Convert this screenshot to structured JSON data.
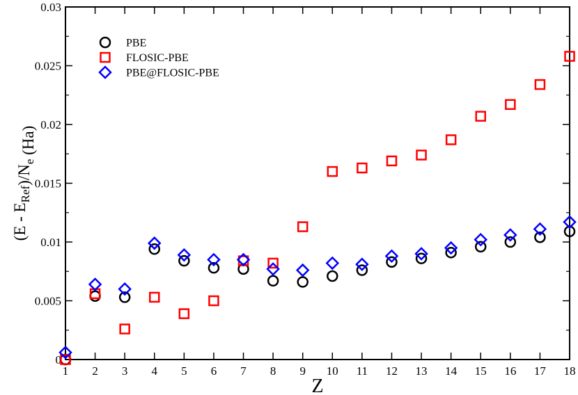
{
  "chart_data": {
    "type": "scatter",
    "title": "",
    "xlabel": "Z",
    "ylabel": {
      "parts": [
        {
          "text": "(E - E",
          "style": "normal"
        },
        {
          "text": "Ref",
          "style": "sub"
        },
        {
          "text": ")/N",
          "style": "normal"
        },
        {
          "text": "e",
          "style": "sub"
        },
        {
          "text": " (Ha)",
          "style": "normal"
        }
      ]
    },
    "xlim": [
      1,
      18
    ],
    "ylim": [
      0,
      0.03
    ],
    "x_ticks": [
      1,
      2,
      3,
      4,
      5,
      6,
      7,
      8,
      9,
      10,
      11,
      12,
      13,
      14,
      15,
      16,
      17,
      18
    ],
    "x_tick_labels": [
      "1",
      "2",
      "3",
      "4",
      "5",
      "6",
      "7",
      "8",
      "9",
      "10",
      "11",
      "12",
      "13",
      "14",
      "15",
      "16",
      "17",
      "18"
    ],
    "y_ticks": [
      0,
      0.005,
      0.01,
      0.015,
      0.02,
      0.025,
      0.03
    ],
    "y_tick_labels": [
      "0",
      "0.005",
      "0.01",
      "0.015",
      "0.02",
      "0.025",
      "0.03"
    ],
    "grid": false,
    "legend_position": "top-left",
    "x": [
      1,
      2,
      3,
      4,
      5,
      6,
      7,
      8,
      9,
      10,
      11,
      12,
      13,
      14,
      15,
      16,
      17,
      18
    ],
    "series": [
      {
        "name": "PBE",
        "marker": "circle",
        "color": "#000000",
        "values": [
          0.0,
          0.0054,
          0.0053,
          0.0094,
          0.0084,
          0.0078,
          0.0077,
          0.0067,
          0.0066,
          0.0071,
          0.0076,
          0.0083,
          0.0086,
          0.0091,
          0.0096,
          0.01,
          0.0104,
          0.0109
        ]
      },
      {
        "name": "FLOSIC-PBE",
        "marker": "square",
        "color": "#ff0000",
        "values": [
          0.0,
          0.0056,
          0.0026,
          0.0053,
          0.0039,
          0.005,
          0.0084,
          0.0082,
          0.0113,
          0.016,
          0.0163,
          0.0169,
          0.0174,
          0.0187,
          0.0207,
          0.0217,
          0.0234,
          0.0258
        ]
      },
      {
        "name": "PBE@FLOSIC-PBE",
        "marker": "diamond",
        "color": "#0000ff",
        "values": [
          0.0006,
          0.0064,
          0.006,
          0.0099,
          0.0089,
          0.0085,
          0.0085,
          0.0077,
          0.0076,
          0.0082,
          0.0081,
          0.0088,
          0.009,
          0.0095,
          0.0102,
          0.0106,
          0.0111,
          0.0117
        ]
      }
    ]
  }
}
